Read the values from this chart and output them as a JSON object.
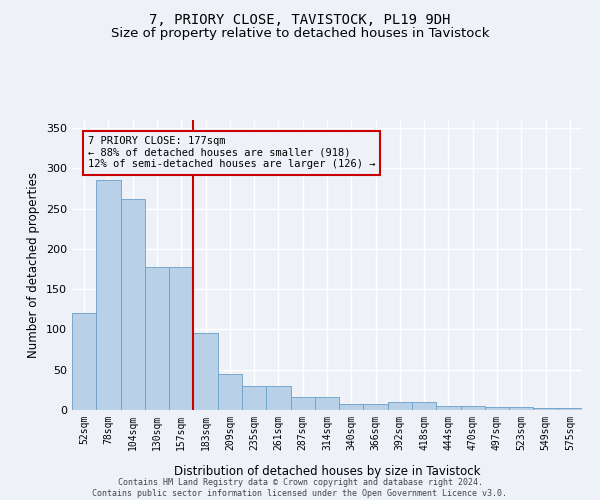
{
  "title": "7, PRIORY CLOSE, TAVISTOCK, PL19 9DH",
  "subtitle": "Size of property relative to detached houses in Tavistock",
  "xlabel": "Distribution of detached houses by size in Tavistock",
  "ylabel": "Number of detached properties",
  "categories": [
    "52sqm",
    "78sqm",
    "104sqm",
    "130sqm",
    "157sqm",
    "183sqm",
    "209sqm",
    "235sqm",
    "261sqm",
    "287sqm",
    "314sqm",
    "340sqm",
    "366sqm",
    "392sqm",
    "418sqm",
    "444sqm",
    "470sqm",
    "497sqm",
    "523sqm",
    "549sqm",
    "575sqm"
  ],
  "values": [
    120,
    285,
    262,
    178,
    178,
    96,
    45,
    30,
    30,
    16,
    16,
    7,
    7,
    10,
    10,
    5,
    5,
    4,
    4,
    3,
    3
  ],
  "bar_color": "#b8d0e8",
  "bar_edge_color": "#6a9fc8",
  "vline_color": "#cc0000",
  "annotation_text": "7 PRIORY CLOSE: 177sqm\n← 88% of detached houses are smaller (918)\n12% of semi-detached houses are larger (126) →",
  "annotation_box_color": "#cc0000",
  "ylim": [
    0,
    360
  ],
  "yticks": [
    0,
    50,
    100,
    150,
    200,
    250,
    300,
    350
  ],
  "footer_text": "Contains HM Land Registry data © Crown copyright and database right 2024.\nContains public sector information licensed under the Open Government Licence v3.0.",
  "bg_color": "#eef2f8",
  "grid_color": "#ffffff",
  "title_fontsize": 10,
  "subtitle_fontsize": 9.5,
  "label_fontsize": 8.5
}
